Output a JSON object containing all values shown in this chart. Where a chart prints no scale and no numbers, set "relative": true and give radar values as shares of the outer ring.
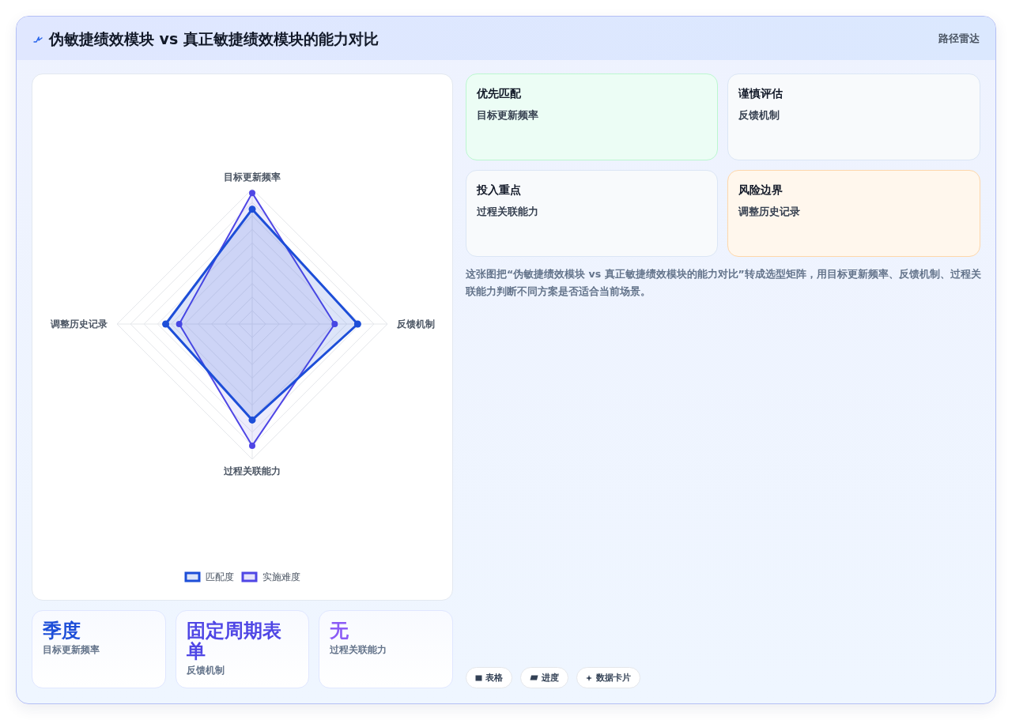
{
  "chart_data": [
    {
      "type": "radar",
      "title": "伪敏捷绩效模块 vs 真正敏捷绩效模块的能力对比",
      "categories": [
        "目标更新频率",
        "反馈机制",
        "过程关联能力",
        "调整历史记录"
      ],
      "relative": true,
      "series": [
        {
          "name": "匹配度",
          "color": "#1d4ed8",
          "values": [
            0.85,
            0.78,
            0.71,
            0.64
          ]
        },
        {
          "name": "实施难度",
          "color": "#4f46e5",
          "values": [
            0.97,
            0.61,
            0.9,
            0.54
          ]
        }
      ],
      "grid": true,
      "legend": "bottom",
      "marker": "circle"
    },
    {
      "type": "other",
      "annotations": [
        "路径雷达",
        "优先匹配",
        "目标更新频率",
        "谨慎评估",
        "反馈机制",
        "投入重点",
        "过程关联能力",
        "风险边界",
        "调整历史记录",
        "这张图把“伪敏捷绩效模块 vs 真正敏捷绩效模块的能力对比”转成选型矩阵，用目标更新频率、反馈机制、过程关联能力判断不同方案是否适合当前场景。",
        "表格",
        "进度",
        "数据卡片"
      ]
    },
    {
      "type": "other",
      "annotations": [
        "季度",
        "目标更新频率",
        "固定周期表单",
        "反馈机制",
        "无",
        "过程关联能力"
      ]
    }
  ]
}
